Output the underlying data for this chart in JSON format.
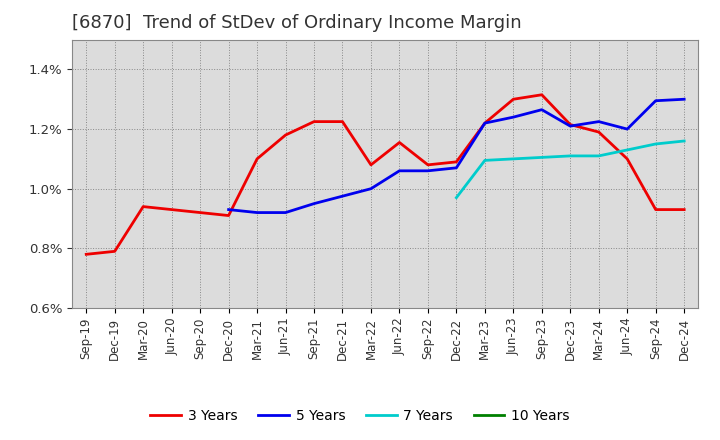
{
  "title": "[6870]  Trend of StDev of Ordinary Income Margin",
  "title_fontsize": 13,
  "background_color": "#ffffff",
  "plot_area_color": "#dcdcdc",
  "ylim": [
    0.006,
    0.015
  ],
  "yticks": [
    0.006,
    0.008,
    0.01,
    0.012,
    0.014
  ],
  "series": [
    {
      "name": "3 Years",
      "color": "#ee0000",
      "data_keys": [
        "Sep-19",
        "Dec-19",
        "Mar-20",
        "Jun-20",
        "Sep-20",
        "Dec-20",
        "Mar-21",
        "Jun-21",
        "Sep-21",
        "Dec-21",
        "Mar-22",
        "Jun-22",
        "Sep-22",
        "Dec-22",
        "Mar-23",
        "Jun-23",
        "Sep-23",
        "Dec-23",
        "Mar-24",
        "Jun-24",
        "Sep-24",
        "Dec-24"
      ],
      "data_vals": [
        0.0078,
        0.0079,
        0.0094,
        0.0093,
        0.0092,
        0.0091,
        0.011,
        0.0118,
        0.01225,
        0.01225,
        0.0108,
        0.01155,
        0.0108,
        0.0109,
        0.0122,
        0.013,
        0.01315,
        0.01215,
        0.0119,
        0.011,
        0.0093,
        0.0093
      ]
    },
    {
      "name": "5 Years",
      "color": "#0000ee",
      "data_keys": [
        "Dec-20",
        "Mar-21",
        "Jun-21",
        "Sep-21",
        "Dec-21",
        "Mar-22",
        "Jun-22",
        "Sep-22",
        "Dec-22",
        "Mar-23",
        "Jun-23",
        "Sep-23",
        "Dec-23",
        "Mar-24",
        "Jun-24",
        "Sep-24",
        "Dec-24"
      ],
      "data_vals": [
        0.0093,
        0.0092,
        0.0092,
        0.0095,
        0.00975,
        0.01,
        0.0106,
        0.0106,
        0.0107,
        0.0122,
        0.0124,
        0.01265,
        0.0121,
        0.01225,
        0.012,
        0.01295,
        0.013
      ]
    },
    {
      "name": "7 Years",
      "color": "#00cccc",
      "data_keys": [
        "Dec-22",
        "Mar-23",
        "Jun-23",
        "Sep-23",
        "Dec-23",
        "Mar-24",
        "Jun-24",
        "Sep-24",
        "Dec-24"
      ],
      "data_vals": [
        0.0097,
        0.01095,
        0.011,
        0.01105,
        0.0111,
        0.0111,
        0.0113,
        0.0115,
        0.0116
      ]
    },
    {
      "name": "10 Years",
      "color": "#008000",
      "data_keys": [],
      "data_vals": []
    }
  ],
  "all_ticks": [
    "Sep-19",
    "Dec-19",
    "Mar-20",
    "Jun-20",
    "Sep-20",
    "Dec-20",
    "Mar-21",
    "Jun-21",
    "Sep-21",
    "Dec-21",
    "Mar-22",
    "Jun-22",
    "Sep-22",
    "Dec-22",
    "Mar-23",
    "Jun-23",
    "Sep-23",
    "Dec-23",
    "Mar-24",
    "Jun-24",
    "Sep-24",
    "Dec-24"
  ]
}
